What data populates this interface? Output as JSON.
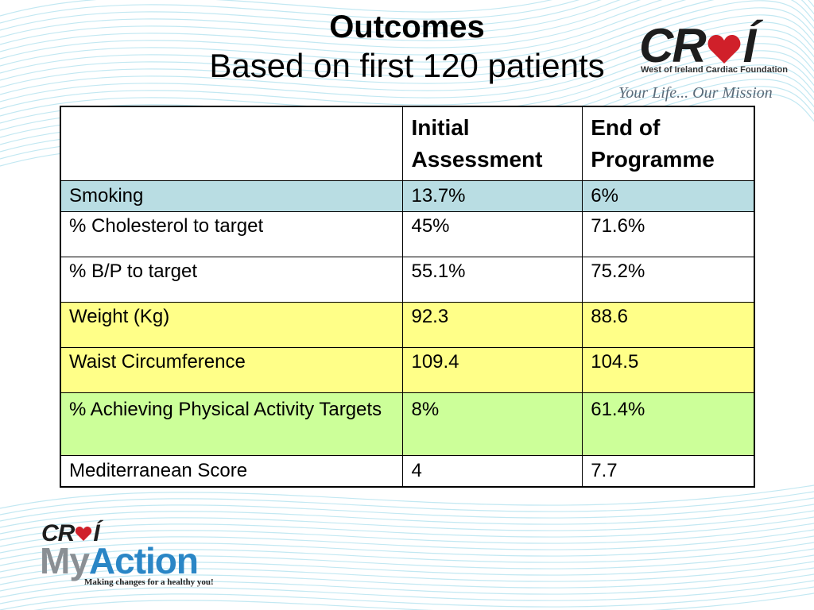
{
  "slide": {
    "title": "Outcomes",
    "subtitle": "Based on first 120 patients"
  },
  "logo_top": {
    "word_prefix": "CR",
    "word_suffix": "Í",
    "foundation": "West of Ireland Cardiac Foundation",
    "tagline": "Your Life... Our Mission"
  },
  "table": {
    "headers": [
      "",
      "Initial Assessment",
      "End of Programme"
    ],
    "rows": [
      {
        "label": "Smoking",
        "initial": "13.7%",
        "end": "6%",
        "color": "#b9dde3"
      },
      {
        "label": "% Cholesterol to target",
        "initial": "45%",
        "end": "71.6%",
        "color": "#ffffff"
      },
      {
        "label": "% B/P to target",
        "initial": "55.1%",
        "end": "75.2%",
        "color": "#ffffff"
      },
      {
        "label": "Weight (Kg)",
        "initial": "92.3",
        "end": "88.6",
        "color": "#ffff88"
      },
      {
        "label": "Waist Circumference",
        "initial": "109.4",
        "end": "104.5",
        "color": "#ffff88"
      },
      {
        "label": "% Achieving Physical Activity Targets",
        "initial": "8%",
        "end": "61.4%",
        "color": "#ccff99"
      },
      {
        "label": "Mediterranean Score",
        "initial": "4",
        "end": "7.7",
        "color": "#ffffff"
      }
    ]
  },
  "logo_bottom": {
    "croi_prefix": "CR",
    "croi_suffix": "Í",
    "my": "My",
    "action": "Action",
    "tagline": "Making changes for a healthy you!"
  },
  "colors": {
    "heart": "#d0202a",
    "accent_blue": "#2a86c6",
    "wave": "#b8e4f0"
  }
}
